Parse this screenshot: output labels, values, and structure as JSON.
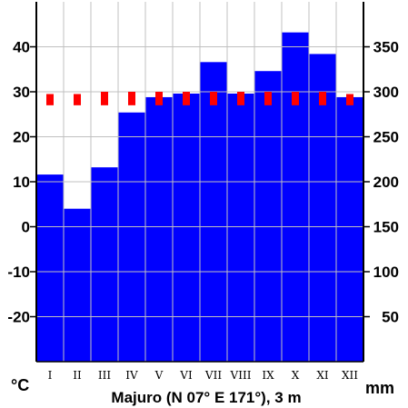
{
  "chart_data": {
    "type": "bar",
    "title": "Majuro (N 07° E 171°), 3 m",
    "left_unit": "°C",
    "right_unit": "mm",
    "categories": [
      "I",
      "II",
      "III",
      "IV",
      "V",
      "VI",
      "VII",
      "VIII",
      "IX",
      "X",
      "XI",
      "XII"
    ],
    "left_axis": {
      "range": [
        -30,
        50
      ],
      "ticks": [
        40,
        30,
        20,
        10,
        0,
        -10,
        -20
      ]
    },
    "right_axis": {
      "range": [
        0,
        400
      ],
      "ticks": [
        350,
        300,
        250,
        200,
        150,
        100,
        50
      ]
    },
    "series": [
      {
        "type": "bar",
        "axis": "right",
        "color": "#0000ff",
        "values": [
          208,
          170,
          216,
          277,
          294,
          298,
          333,
          298,
          323,
          366,
          342,
          294
        ]
      },
      {
        "type": "range",
        "axis": "left",
        "color": "#ff0000",
        "low": [
          27,
          27,
          27,
          27,
          27,
          27,
          27,
          27,
          27,
          27,
          27,
          27
        ],
        "high": [
          29.5,
          29.5,
          30,
          30,
          30,
          30,
          30,
          30,
          30,
          30,
          30,
          29.5
        ]
      }
    ],
    "grid": true
  }
}
